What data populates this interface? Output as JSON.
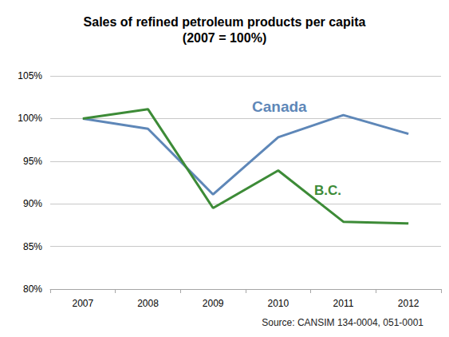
{
  "chart_data": {
    "type": "line",
    "title": "Sales of refined petroleum products per capita",
    "subtitle": "(2007 = 100%)",
    "categories": [
      "2007",
      "2008",
      "2009",
      "2010",
      "2011",
      "2012"
    ],
    "series": [
      {
        "name": "Canada",
        "color": "#5e87b8",
        "values": [
          100,
          98.8,
          91.1,
          97.8,
          100.4,
          98.2
        ]
      },
      {
        "name": "B.C.",
        "color": "#3d8b37",
        "values": [
          100,
          101.1,
          89.5,
          93.9,
          87.9,
          87.7
        ]
      }
    ],
    "ylim": [
      80,
      105
    ],
    "yticks": [
      {
        "value": 80,
        "label": "80%"
      },
      {
        "value": 85,
        "label": "85%"
      },
      {
        "value": 90,
        "label": "90%"
      },
      {
        "value": 95,
        "label": "95%"
      },
      {
        "value": 100,
        "label": "100%"
      },
      {
        "value": 105,
        "label": "105%"
      }
    ],
    "grid": true,
    "annotations": [
      "Source: CANSIM 134-0004, 051-0001"
    ]
  }
}
